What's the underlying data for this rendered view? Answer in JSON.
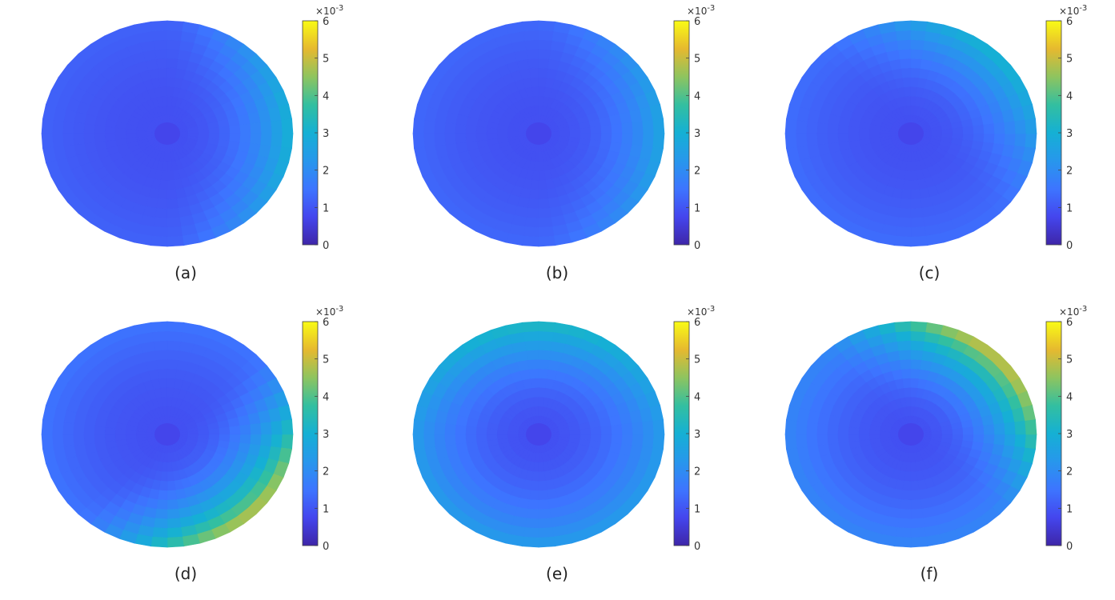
{
  "colormap": "parula",
  "chart_data": [
    {
      "type": "heatmap",
      "panel_label": "(a)",
      "colorbar": {
        "min": 0,
        "max": 6,
        "ticks": [
          "0",
          "1",
          "2",
          "3",
          "4",
          "5",
          "6"
        ],
        "exponent": "×10-3"
      },
      "field": {
        "center_value": 0.9,
        "min_value": 0.9,
        "max_value": 3.0,
        "hot_side": "right",
        "hot_strength": 1.9,
        "edge_strength": 0.3
      }
    },
    {
      "type": "heatmap",
      "panel_label": "(b)",
      "colorbar": {
        "min": 0,
        "max": 6,
        "ticks": [
          "0",
          "1",
          "2",
          "3",
          "4",
          "5",
          "6"
        ],
        "exponent": "×10-3"
      },
      "field": {
        "center_value": 0.9,
        "min_value": 0.9,
        "max_value": 2.6,
        "hot_side": "right",
        "hot_strength": 1.4,
        "edge_strength": 0.4
      }
    },
    {
      "type": "heatmap",
      "panel_label": "(c)",
      "colorbar": {
        "min": 0,
        "max": 6,
        "ticks": [
          "0",
          "1",
          "2",
          "3",
          "4",
          "5",
          "6"
        ],
        "exponent": "×10-3"
      },
      "field": {
        "center_value": 0.9,
        "min_value": 0.9,
        "max_value": 3.0,
        "hot_side": "upper-right",
        "hot_strength": 1.8,
        "edge_strength": 0.5
      }
    },
    {
      "type": "heatmap",
      "panel_label": "(d)",
      "colorbar": {
        "min": 0,
        "max": 6,
        "ticks": [
          "0",
          "1",
          "2",
          "3",
          "4",
          "5",
          "6"
        ],
        "exponent": "×10-3"
      },
      "field": {
        "center_value": 0.9,
        "min_value": 0.9,
        "max_value": 4.9,
        "hot_side": "lower-right",
        "hot_strength": 3.6,
        "edge_strength": 0.6
      }
    },
    {
      "type": "heatmap",
      "panel_label": "(e)",
      "colorbar": {
        "min": 0,
        "max": 6,
        "ticks": [
          "0",
          "1",
          "2",
          "3",
          "4",
          "5",
          "6"
        ],
        "exponent": "×10-3"
      },
      "field": {
        "center_value": 0.9,
        "min_value": 0.9,
        "max_value": 3.2,
        "hot_side": "top",
        "hot_strength": 1.0,
        "edge_strength": 1.5
      }
    },
    {
      "type": "heatmap",
      "panel_label": "(f)",
      "colorbar": {
        "min": 0,
        "max": 6,
        "ticks": [
          "0",
          "1",
          "2",
          "3",
          "4",
          "5",
          "6"
        ],
        "exponent": "×10-3"
      },
      "field": {
        "center_value": 0.9,
        "min_value": 0.9,
        "max_value": 4.8,
        "hot_side": "upper-right",
        "hot_strength": 3.4,
        "edge_strength": 1.0
      }
    }
  ]
}
